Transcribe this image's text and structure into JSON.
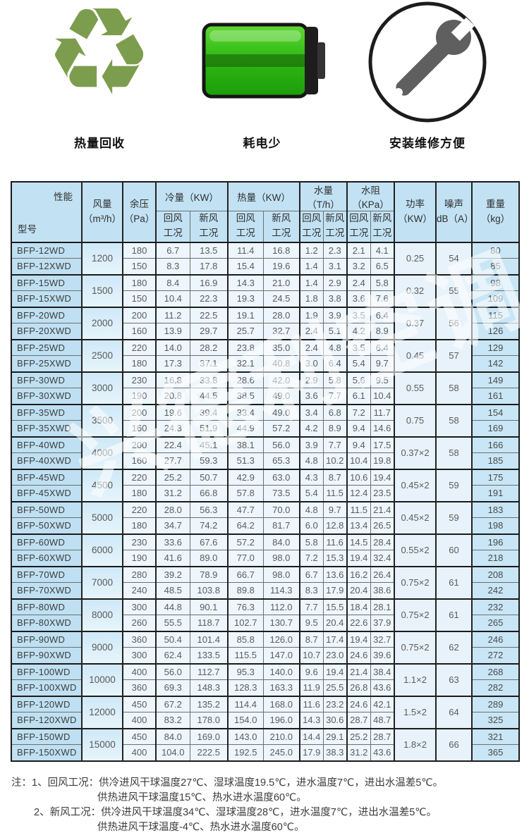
{
  "features": [
    {
      "icon": "recycle-icon",
      "label": "热量回收"
    },
    {
      "icon": "battery-icon",
      "label": "耗电少"
    },
    {
      "icon": "wrench-icon",
      "label": "安装维修方便"
    }
  ],
  "colors": {
    "label_bar_blue": "#68c7f2",
    "header_bg": "#c2e2f4",
    "model_cell_bg": "#bfe0f2",
    "data_cell_bg": "#edf6fc",
    "weight_cell_bg": "#c9e6f6",
    "battery_green": "#2fbb14",
    "recycle_green": "#7d9d4e",
    "border_dark": "#1b1b1b"
  },
  "watermark": "兴德利空调",
  "table": {
    "corner": {
      "top_right": "性能",
      "bottom_left": "型号"
    },
    "headers": {
      "airflow": "风量\n（m³/h）",
      "pressure": "余压\n（Pa）",
      "cooling": "冷量（KW）",
      "heating": "热量（KW）",
      "water": "水量（T/h）",
      "resistance": "水阻（KPa）",
      "power": "功率\n（KW）",
      "noise": "噪声\ndB（A）",
      "weight": "重量\n（kg）",
      "return_cond": "回风\n工况",
      "fresh_cond": "新风\n工况"
    },
    "groups": [
      {
        "airflow": "1200",
        "power": "0.25",
        "noise": "54",
        "rows": [
          [
            "BFP-12WD",
            "180",
            "6.7",
            "13.5",
            "11.4",
            "16.8",
            "1.2",
            "2.3",
            "2.1",
            "4.1",
            "80"
          ],
          [
            "BFP-12XWD",
            "150",
            "8.3",
            "17.8",
            "15.4",
            "19.6",
            "1.4",
            "3.1",
            "3.2",
            "6.5",
            "85"
          ]
        ]
      },
      {
        "airflow": "1500",
        "power": "0.32",
        "noise": "55",
        "rows": [
          [
            "BFP-15WD",
            "180",
            "8.4",
            "16.9",
            "14.3",
            "21.0",
            "1.4",
            "2.9",
            "2.4",
            "5.8",
            "98"
          ],
          [
            "BFP-15XWD",
            "150",
            "10.4",
            "22.3",
            "19.3",
            "24.5",
            "1.8",
            "3.8",
            "3.6",
            "7.6",
            "109"
          ]
        ]
      },
      {
        "airflow": "2000",
        "power": "0.37",
        "noise": "56",
        "rows": [
          [
            "BFP-20WD",
            "200",
            "11.2",
            "22.5",
            "19.1",
            "28.0",
            "1.9",
            "3.9",
            "3.5",
            "6.4",
            "115"
          ],
          [
            "BFP-20XWD",
            "160",
            "13.9",
            "29.7",
            "25.7",
            "32.7",
            "2.4",
            "5.1",
            "4.2",
            "8.9",
            "126"
          ]
        ]
      },
      {
        "airflow": "2500",
        "power": "0.45",
        "noise": "57",
        "rows": [
          [
            "BFP-25WD",
            "220",
            "14.0",
            "28.2",
            "23.8",
            "35.0",
            "2.4",
            "4.8",
            "3.5",
            "6.4",
            "129"
          ],
          [
            "BFP-25XWD",
            "180",
            "17.3",
            "37.1",
            "32.1",
            "40.8",
            "3.0",
            "6.4",
            "5.4",
            "9.7",
            "142"
          ]
        ]
      },
      {
        "airflow": "3000",
        "power": "0.55",
        "noise": "58",
        "rows": [
          [
            "BFP-30WD",
            "230",
            "16.8",
            "33.8",
            "28.6",
            "42.0",
            "2.9",
            "5.8",
            "5.6",
            "9.5",
            "149"
          ],
          [
            "BFP-30XWD",
            "190",
            "20.8",
            "44.5",
            "38.5",
            "49.0",
            "3.6",
            "7.7",
            "6.1",
            "10.4",
            "161"
          ]
        ]
      },
      {
        "airflow": "3500",
        "power": "0.75",
        "noise": "58",
        "rows": [
          [
            "BFP-35WD",
            "200",
            "19.6",
            "39.4",
            "33.4",
            "49.0",
            "3.4",
            "6.8",
            "7.2",
            "11.7",
            "154"
          ],
          [
            "BFP-35XWD",
            "160",
            "24.3",
            "51.9",
            "44.9",
            "57.2",
            "4.2",
            "8.9",
            "9.4",
            "14.6",
            "169"
          ]
        ]
      },
      {
        "airflow": "4000",
        "power": "0.37×2",
        "noise": "58",
        "rows": [
          [
            "BFP-40WD",
            "200",
            "22.4",
            "45.1",
            "38.1",
            "56.0",
            "3.9",
            "7.7",
            "9.4",
            "17.5",
            "166"
          ],
          [
            "BFP-40XWD",
            "160",
            "27.7",
            "59.3",
            "51.3",
            "65.3",
            "4.8",
            "10.2",
            "10.4",
            "19.8",
            "185"
          ]
        ]
      },
      {
        "airflow": "4500",
        "power": "0.45×2",
        "noise": "59",
        "rows": [
          [
            "BFP-45WD",
            "220",
            "25.2",
            "50.7",
            "42.9",
            "63.0",
            "4.3",
            "8.7",
            "10.6",
            "19.4",
            "175"
          ],
          [
            "BFP-45XWD",
            "180",
            "31.2",
            "66.8",
            "57.8",
            "73.5",
            "5.4",
            "11.5",
            "12.4",
            "23.5",
            "191"
          ]
        ]
      },
      {
        "airflow": "5000",
        "power": "0.45×2",
        "noise": "59",
        "rows": [
          [
            "BFP-50WD",
            "220",
            "28.0",
            "56.3",
            "47.7",
            "70.0",
            "4.8",
            "9.7",
            "11.5",
            "21.4",
            "183"
          ],
          [
            "BFP-50XWD",
            "180",
            "34.7",
            "74.2",
            "64.2",
            "81.7",
            "6.0",
            "12.8",
            "13.4",
            "26.5",
            "198"
          ]
        ]
      },
      {
        "airflow": "6000",
        "power": "0.55×2",
        "noise": "60",
        "rows": [
          [
            "BFP-60WD",
            "230",
            "33.6",
            "67.6",
            "57.2",
            "84.0",
            "5.8",
            "11.6",
            "14.5",
            "28.4",
            "196"
          ],
          [
            "BFP-60XWD",
            "190",
            "41.6",
            "89.0",
            "77.0",
            "98.0",
            "7.2",
            "15.3",
            "19.4",
            "32.4",
            "218"
          ]
        ]
      },
      {
        "airflow": "7000",
        "power": "0.75×2",
        "noise": "61",
        "rows": [
          [
            "BFP-70WD",
            "280",
            "39.2",
            "78.9",
            "66.7",
            "98.0",
            "6.7",
            "13.6",
            "16.2",
            "26.4",
            "208"
          ],
          [
            "BFP-70XWD",
            "240",
            "48.5",
            "103.8",
            "89.8",
            "114.3",
            "8.3",
            "17.9",
            "20.4",
            "38.6",
            "242"
          ]
        ]
      },
      {
        "airflow": "8000",
        "power": "0.75×2",
        "noise": "61",
        "rows": [
          [
            "BFP-80WD",
            "300",
            "44.8",
            "90.1",
            "76.3",
            "112.0",
            "7.7",
            "15.5",
            "18.4",
            "28.1",
            "232"
          ],
          [
            "BFP-80XWD",
            "260",
            "55.5",
            "118.7",
            "102.7",
            "130.7",
            "9.5",
            "20.4",
            "22.6",
            "37.9",
            "265"
          ]
        ]
      },
      {
        "airflow": "9000",
        "power": "0.75×2",
        "noise": "62",
        "rows": [
          [
            "BFP-90WD",
            "360",
            "50.4",
            "101.4",
            "85.8",
            "126.0",
            "8.7",
            "17.4",
            "19.4",
            "32.7",
            "246"
          ],
          [
            "BFP-90XWD",
            "300",
            "62.4",
            "133.5",
            "115.5",
            "147.0",
            "10.7",
            "23.0",
            "24.6",
            "39.6",
            "272"
          ]
        ]
      },
      {
        "airflow": "10000",
        "power": "1.1×2",
        "noise": "63",
        "rows": [
          [
            "BFP-100WD",
            "400",
            "56.0",
            "112.7",
            "95.3",
            "140.0",
            "9.6",
            "19.4",
            "21.4",
            "38.4",
            "268"
          ],
          [
            "BFP-100XWD",
            "360",
            "69.3",
            "148.3",
            "128.3",
            "163.3",
            "11.9",
            "25.5",
            "26.8",
            "43.6",
            "282"
          ]
        ]
      },
      {
        "airflow": "12000",
        "power": "1.5×2",
        "noise": "64",
        "rows": [
          [
            "BFP-120WD",
            "450",
            "67.2",
            "135.2",
            "114.4",
            "168.0",
            "11.6",
            "23.2",
            "24.6",
            "42.1",
            "289"
          ],
          [
            "BFP-120XWD",
            "400",
            "83.2",
            "178.0",
            "154.0",
            "196.0",
            "14.3",
            "30.6",
            "28.7",
            "48.7",
            "325"
          ]
        ]
      },
      {
        "airflow": "15000",
        "power": "1.8×2",
        "noise": "66",
        "rows": [
          [
            "BFP-150WD",
            "450",
            "84.0",
            "169.0",
            "143.0",
            "210.0",
            "14.4",
            "29.1",
            "25.2",
            "28.7",
            "321"
          ],
          [
            "BFP-150XWD",
            "400",
            "104.0",
            "222.5",
            "192.5",
            "245.0",
            "17.9",
            "38.3",
            "31.2",
            "43.6",
            "365"
          ]
        ]
      }
    ]
  },
  "notes": [
    "注：1、回风工况：供冷进风干球温度27℃、湿球温度19.5℃，进水温度7℃，进出水温差5℃。",
    "供热进风干球温度15℃、热水进水温度60℃。",
    "2、新风工况：供冷进风干球温度34℃、湿球温度28℃，进水温度7℃，进出水温差5℃。",
    "供热进风干球温度-4℃、热水进水温度60℃。"
  ]
}
